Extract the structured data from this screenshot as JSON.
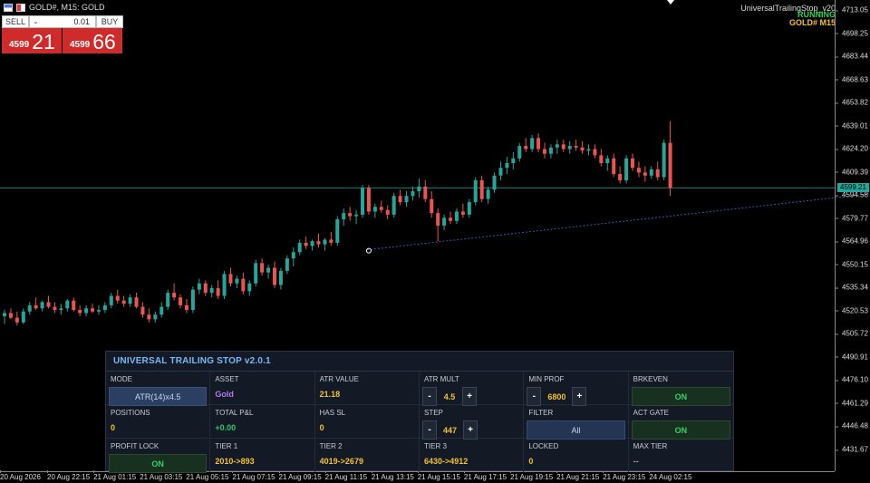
{
  "topbar": {
    "title": "GOLD#, M15:  GOLD"
  },
  "ea": {
    "name": "UniversalTrailingStop_v20",
    "status": "RUNNING",
    "symbol_tf": "GOLD#  M15"
  },
  "trade": {
    "sell_label": "SELL",
    "buy_label": "BUY",
    "volume": "0.01",
    "sell_small": "4599",
    "sell_big": "21",
    "buy_small": "4599",
    "buy_big": "66"
  },
  "price_axis": {
    "labels": [
      "4713.05",
      "4698.25",
      "4683.44",
      "4668.63",
      "4653.82",
      "4639.01",
      "4624.20",
      "4609.39",
      "4594.58",
      "4579.77",
      "4564.96",
      "4550.15",
      "4535.34",
      "4520.53",
      "4505.72",
      "4490.91",
      "4476.10",
      "4461.29",
      "4446.48",
      "4431.67"
    ],
    "current_price": "4599.21"
  },
  "time_axis": {
    "labels": [
      "20 Aug 2026",
      "20 Aug 22:15",
      "21 Aug 01:15",
      "21 Aug 03:15",
      "21 Aug 05:15",
      "21 Aug 07:15",
      "21 Aug 09:15",
      "21 Aug 11:15",
      "21 Aug 13:15",
      "21 Aug 15:15",
      "21 Aug 17:15",
      "21 Aug 19:15",
      "21 Aug 21:15",
      "21 Aug 23:15",
      "24 Aug 02:15"
    ]
  },
  "colors": {
    "bull": "#26a69a",
    "bear": "#ef5350",
    "trail": "#3f51b5"
  },
  "chart_data": {
    "type": "candlestick",
    "ylim": [
      4425,
      4720
    ],
    "trail_line": [
      [
        58,
        4559.5
      ],
      [
        144,
        4598.0
      ]
    ],
    "candles": [
      [
        4517,
        4521,
        4512,
        4519
      ],
      [
        4519,
        4522,
        4515,
        4516
      ],
      [
        4516,
        4520,
        4511,
        4513
      ],
      [
        4513,
        4522,
        4512,
        4520
      ],
      [
        4520,
        4526,
        4518,
        4524
      ],
      [
        4524,
        4529,
        4521,
        4522
      ],
      [
        4522,
        4527,
        4520,
        4526
      ],
      [
        4526,
        4530,
        4522,
        4523
      ],
      [
        4523,
        4526,
        4519,
        4521
      ],
      [
        4521,
        4525,
        4518,
        4522
      ],
      [
        4522,
        4528,
        4520,
        4527
      ],
      [
        4527,
        4529,
        4520,
        4521
      ],
      [
        4521,
        4524,
        4517,
        4519
      ],
      [
        4519,
        4524,
        4517,
        4522
      ],
      [
        4522,
        4525,
        4519,
        4520
      ],
      [
        4520,
        4524,
        4518,
        4521
      ],
      [
        4521,
        4526,
        4519,
        4524
      ],
      [
        4524,
        4532,
        4522,
        4530
      ],
      [
        4530,
        4534,
        4525,
        4527
      ],
      [
        4527,
        4530,
        4523,
        4525
      ],
      [
        4525,
        4531,
        4523,
        4529
      ],
      [
        4529,
        4532,
        4522,
        4523
      ],
      [
        4523,
        4526,
        4516,
        4518
      ],
      [
        4518,
        4522,
        4513,
        4515
      ],
      [
        4515,
        4520,
        4513,
        4518
      ],
      [
        4518,
        4526,
        4516,
        4523
      ],
      [
        4523,
        4534,
        4521,
        4532
      ],
      [
        4532,
        4538,
        4527,
        4529
      ],
      [
        4529,
        4531,
        4522,
        4524
      ],
      [
        4524,
        4528,
        4519,
        4521
      ],
      [
        4521,
        4536,
        4519,
        4534
      ],
      [
        4534,
        4541,
        4531,
        4538
      ],
      [
        4538,
        4540,
        4530,
        4532
      ],
      [
        4532,
        4537,
        4529,
        4535
      ],
      [
        4535,
        4540,
        4528,
        4530
      ],
      [
        4530,
        4546,
        4528,
        4544
      ],
      [
        4544,
        4548,
        4536,
        4538
      ],
      [
        4538,
        4543,
        4535,
        4541
      ],
      [
        4541,
        4545,
        4531,
        4533
      ],
      [
        4533,
        4540,
        4530,
        4538
      ],
      [
        4538,
        4553,
        4536,
        4551
      ],
      [
        4551,
        4554,
        4543,
        4545
      ],
      [
        4545,
        4550,
        4541,
        4548
      ],
      [
        4548,
        4552,
        4535,
        4537
      ],
      [
        4537,
        4548,
        4534,
        4546
      ],
      [
        4546,
        4556,
        4544,
        4554
      ],
      [
        4554,
        4561,
        4549,
        4558
      ],
      [
        4558,
        4566,
        4556,
        4564
      ],
      [
        4564,
        4568,
        4560,
        4562
      ],
      [
        4562,
        4566,
        4559,
        4565
      ],
      [
        4565,
        4570,
        4561,
        4563
      ],
      [
        4563,
        4567,
        4559,
        4566
      ],
      [
        4566,
        4571,
        4562,
        4564
      ],
      [
        4564,
        4581,
        4562,
        4579
      ],
      [
        4579,
        4586,
        4575,
        4583
      ],
      [
        4583,
        4587,
        4578,
        4581
      ],
      [
        4581,
        4585,
        4576,
        4582
      ],
      [
        4582,
        4601,
        4580,
        4599
      ],
      [
        4599,
        4601,
        4582,
        4584
      ],
      [
        4584,
        4589,
        4580,
        4587
      ],
      [
        4587,
        4591,
        4583,
        4585
      ],
      [
        4585,
        4588,
        4579,
        4582
      ],
      [
        4582,
        4596,
        4580,
        4594
      ],
      [
        4594,
        4598,
        4588,
        4590
      ],
      [
        4590,
        4597,
        4587,
        4594
      ],
      [
        4594,
        4600,
        4591,
        4597
      ],
      [
        4597,
        4605,
        4593,
        4600
      ],
      [
        4600,
        4604,
        4590,
        4592
      ],
      [
        4592,
        4597,
        4580,
        4583
      ],
      [
        4583,
        4586,
        4565,
        4575
      ],
      [
        4575,
        4582,
        4572,
        4580
      ],
      [
        4580,
        4584,
        4576,
        4578
      ],
      [
        4578,
        4586,
        4576,
        4584
      ],
      [
        4584,
        4589,
        4580,
        4582
      ],
      [
        4582,
        4592,
        4580,
        4590
      ],
      [
        4590,
        4606,
        4588,
        4604
      ],
      [
        4604,
        4607,
        4590,
        4592
      ],
      [
        4592,
        4600,
        4589,
        4598
      ],
      [
        4598,
        4609,
        4596,
        4607
      ],
      [
        4607,
        4616,
        4604,
        4612
      ],
      [
        4612,
        4619,
        4608,
        4615
      ],
      [
        4615,
        4622,
        4611,
        4618
      ],
      [
        4618,
        4628,
        4616,
        4626
      ],
      [
        4626,
        4631,
        4622,
        4624
      ],
      [
        4624,
        4633,
        4622,
        4631
      ],
      [
        4631,
        4634,
        4622,
        4624
      ],
      [
        4624,
        4628,
        4618,
        4621
      ],
      [
        4621,
        4627,
        4618,
        4625
      ],
      [
        4625,
        4630,
        4621,
        4627
      ],
      [
        4627,
        4630,
        4622,
        4624
      ],
      [
        4624,
        4629,
        4621,
        4626
      ],
      [
        4626,
        4630,
        4623,
        4625
      ],
      [
        4625,
        4629,
        4621,
        4623
      ],
      [
        4623,
        4627,
        4620,
        4624
      ],
      [
        4624,
        4627,
        4618,
        4620
      ],
      [
        4620,
        4624,
        4613,
        4615
      ],
      [
        4615,
        4620,
        4610,
        4618
      ],
      [
        4618,
        4621,
        4606,
        4608
      ],
      [
        4608,
        4613,
        4602,
        4604
      ],
      [
        4604,
        4620,
        4602,
        4618
      ],
      [
        4618,
        4621,
        4610,
        4612
      ],
      [
        4612,
        4616,
        4606,
        4609
      ],
      [
        4609,
        4613,
        4603,
        4607
      ],
      [
        4607,
        4613,
        4605,
        4611
      ],
      [
        4611,
        4616,
        4604,
        4606
      ],
      [
        4606,
        4630,
        4604,
        4628
      ],
      [
        4628,
        4642,
        4594,
        4599
      ]
    ]
  },
  "panel": {
    "title": "UNIVERSAL TRAILING STOP  v2.0.1",
    "mode": {
      "label": "MODE",
      "value": "ATR(14)x4.5"
    },
    "asset": {
      "label": "ASSET",
      "value": "Gold"
    },
    "atr_value": {
      "label": "ATR VALUE",
      "value": "21.18"
    },
    "atr_mult": {
      "label": "ATR MULT",
      "value": "4.5",
      "minus": "-",
      "plus": "+"
    },
    "min_prof": {
      "label": "MIN PROF",
      "value": "6800",
      "minus": "-",
      "plus": "+"
    },
    "brkeven": {
      "label": "BRKEVEN",
      "value": "ON"
    },
    "positions": {
      "label": "POSITIONS",
      "value": "0"
    },
    "total_pl": {
      "label": "TOTAL P&L",
      "value": "+0.00"
    },
    "has_sl": {
      "label": "HAS SL",
      "value": "0"
    },
    "step": {
      "label": "STEP",
      "value": "447",
      "minus": "-",
      "plus": "+"
    },
    "filter": {
      "label": "FILTER",
      "value": "All"
    },
    "act_gate": {
      "label": "ACT GATE",
      "value": "ON"
    },
    "profit_lock": {
      "label": "PROFIT LOCK",
      "value": "ON"
    },
    "tier1": {
      "label": "TIER 1",
      "value": "2010->893"
    },
    "tier2": {
      "label": "TIER 2",
      "value": "4019->2679"
    },
    "tier3": {
      "label": "TIER 3",
      "value": "6430->4912"
    },
    "locked": {
      "label": "LOCKED",
      "value": "0"
    },
    "max_tier": {
      "label": "MAX TIER",
      "value": "--"
    }
  }
}
